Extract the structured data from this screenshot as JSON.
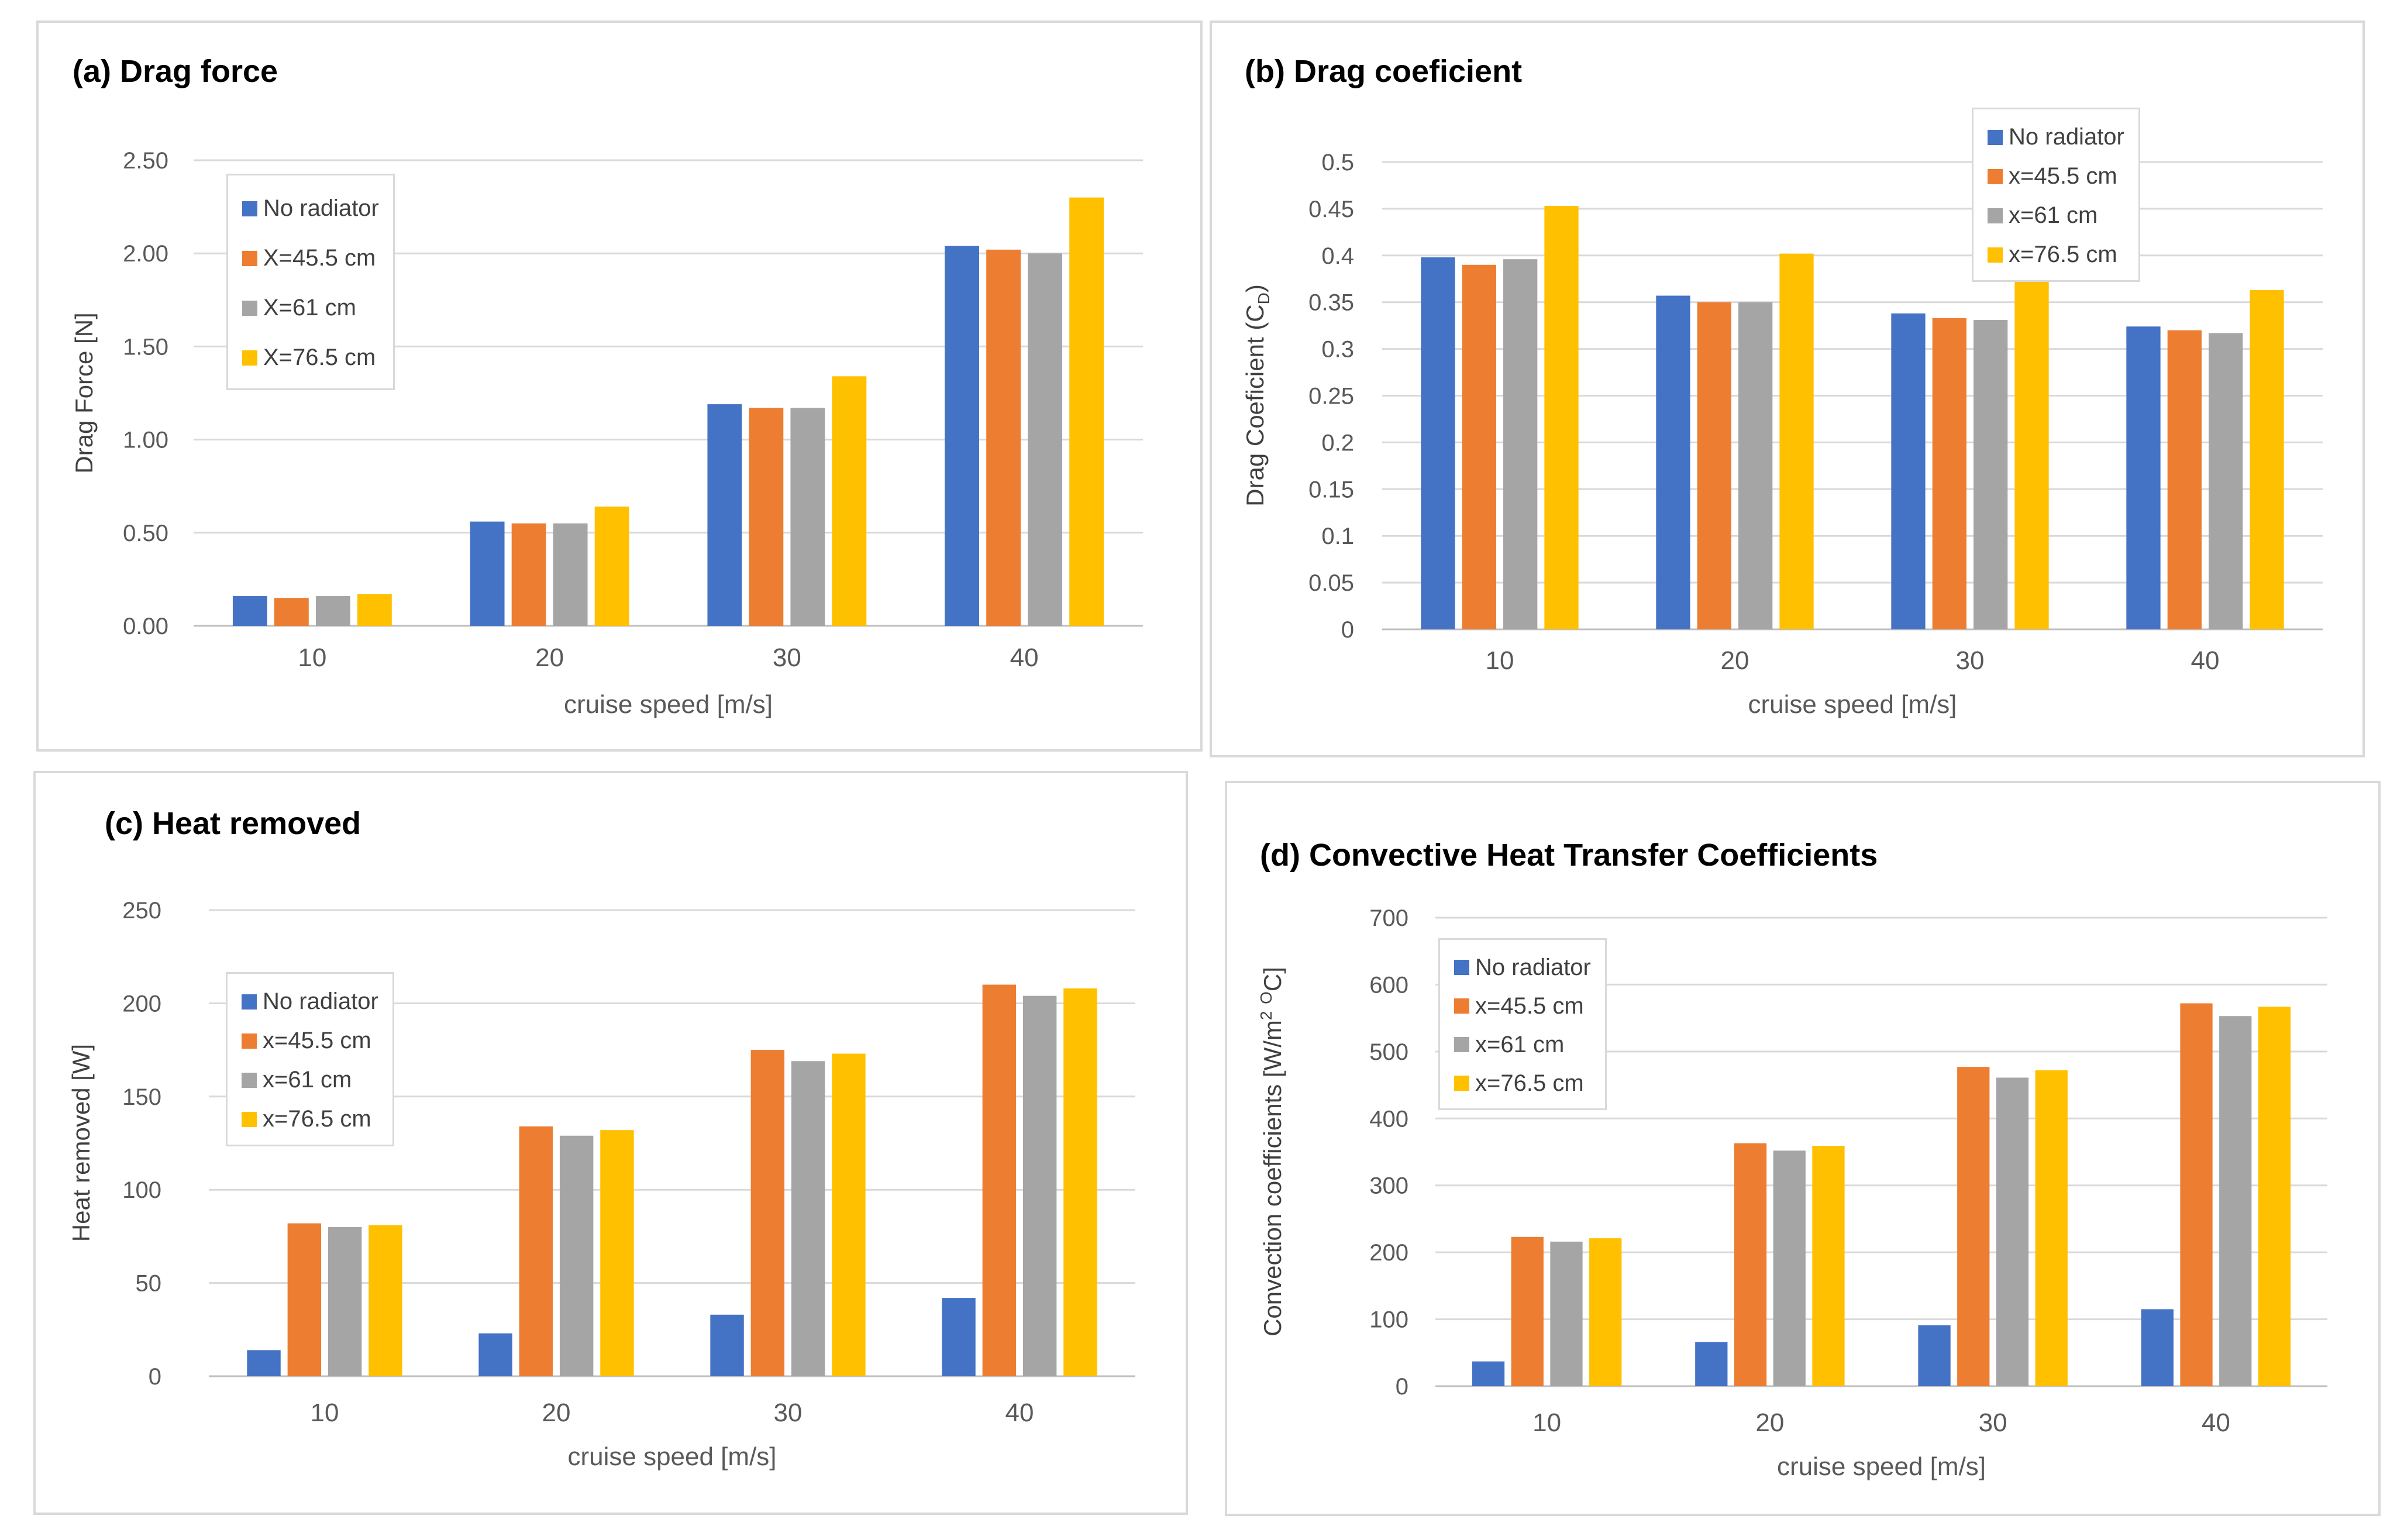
{
  "colors": {
    "s0": "#4472c4",
    "s1": "#ed7d31",
    "s2": "#a5a5a5",
    "s3": "#ffc000"
  },
  "chart_data": [
    {
      "id": "a",
      "type": "bar",
      "title": "(a) Drag force",
      "xlabel": "cruise speed [m/s]",
      "ylabel": "Drag Force [N]",
      "categories": [
        "10",
        "20",
        "30",
        "40"
      ],
      "ylim": [
        0,
        2.5
      ],
      "yticks": [
        "0.00",
        "0.50",
        "1.00",
        "1.50",
        "2.00",
        "2.50"
      ],
      "legend_position": "top-left",
      "series": [
        {
          "name": "No radiator",
          "values": [
            0.16,
            0.56,
            1.19,
            2.04
          ]
        },
        {
          "name": "X=45.5 cm",
          "values": [
            0.15,
            0.55,
            1.17,
            2.02
          ]
        },
        {
          "name": "X=61 cm",
          "values": [
            0.16,
            0.55,
            1.17,
            2.0
          ]
        },
        {
          "name": "X=76.5 cm",
          "values": [
            0.17,
            0.64,
            1.34,
            2.3
          ]
        }
      ]
    },
    {
      "id": "b",
      "type": "bar",
      "title": "(b) Drag coeficient",
      "xlabel": "cruise speed [m/s]",
      "ylabel": "Drag Coeficient (C",
      "ylabel_sub": "D",
      "ylabel_end": ")",
      "categories": [
        "10",
        "20",
        "30",
        "40"
      ],
      "ylim": [
        0,
        0.5
      ],
      "yticks": [
        "0",
        "0.05",
        "0.1",
        "0.15",
        "0.2",
        "0.25",
        "0.3",
        "0.35",
        "0.4",
        "0.45",
        "0.5"
      ],
      "legend_position": "top-right",
      "series": [
        {
          "name": "No radiator",
          "values": [
            0.398,
            0.357,
            0.338,
            0.324
          ]
        },
        {
          "name": "x=45.5 cm",
          "values": [
            0.39,
            0.35,
            0.333,
            0.32
          ]
        },
        {
          "name": "x=61 cm",
          "values": [
            0.396,
            0.35,
            0.331,
            0.317
          ]
        },
        {
          "name": "x=76.5 cm",
          "values": [
            0.453,
            0.402,
            0.379,
            0.363
          ]
        }
      ]
    },
    {
      "id": "c",
      "type": "bar",
      "title": "(c) Heat removed",
      "xlabel": "cruise speed [m/s]",
      "ylabel": "Heat removed [W]",
      "categories": [
        "10",
        "20",
        "30",
        "40"
      ],
      "ylim": [
        0,
        250
      ],
      "yticks": [
        "0",
        "50",
        "100",
        "150",
        "200",
        "250"
      ],
      "legend_position": "top-left",
      "series": [
        {
          "name": "No radiator",
          "values": [
            14,
            23,
            33,
            42
          ]
        },
        {
          "name": "x=45.5 cm",
          "values": [
            82,
            134,
            175,
            210
          ]
        },
        {
          "name": "x=61 cm",
          "values": [
            80,
            129,
            169,
            204
          ]
        },
        {
          "name": "x=76.5 cm",
          "values": [
            81,
            132,
            173,
            208
          ]
        }
      ]
    },
    {
      "id": "d",
      "type": "bar",
      "title": "(d) Convective Heat Transfer Coefficients",
      "xlabel": "cruise speed [m/s]",
      "ylabel": "Convection coefficients [W/m",
      "ylabel_sup1": "2",
      "ylabel_mid": " ",
      "ylabel_sup2": "O",
      "ylabel_end": "C]",
      "categories": [
        "10",
        "20",
        "30",
        "40"
      ],
      "ylim": [
        0,
        700
      ],
      "yticks": [
        "0",
        "100",
        "200",
        "300",
        "400",
        "500",
        "600",
        "700"
      ],
      "legend_position": "top-left",
      "series": [
        {
          "name": "No radiator",
          "values": [
            37,
            66,
            91,
            115
          ]
        },
        {
          "name": "x=45.5 cm",
          "values": [
            223,
            363,
            477,
            572
          ]
        },
        {
          "name": "x=61 cm",
          "values": [
            216,
            352,
            461,
            553
          ]
        },
        {
          "name": "x=76.5 cm",
          "values": [
            221,
            359,
            472,
            567
          ]
        }
      ]
    }
  ]
}
